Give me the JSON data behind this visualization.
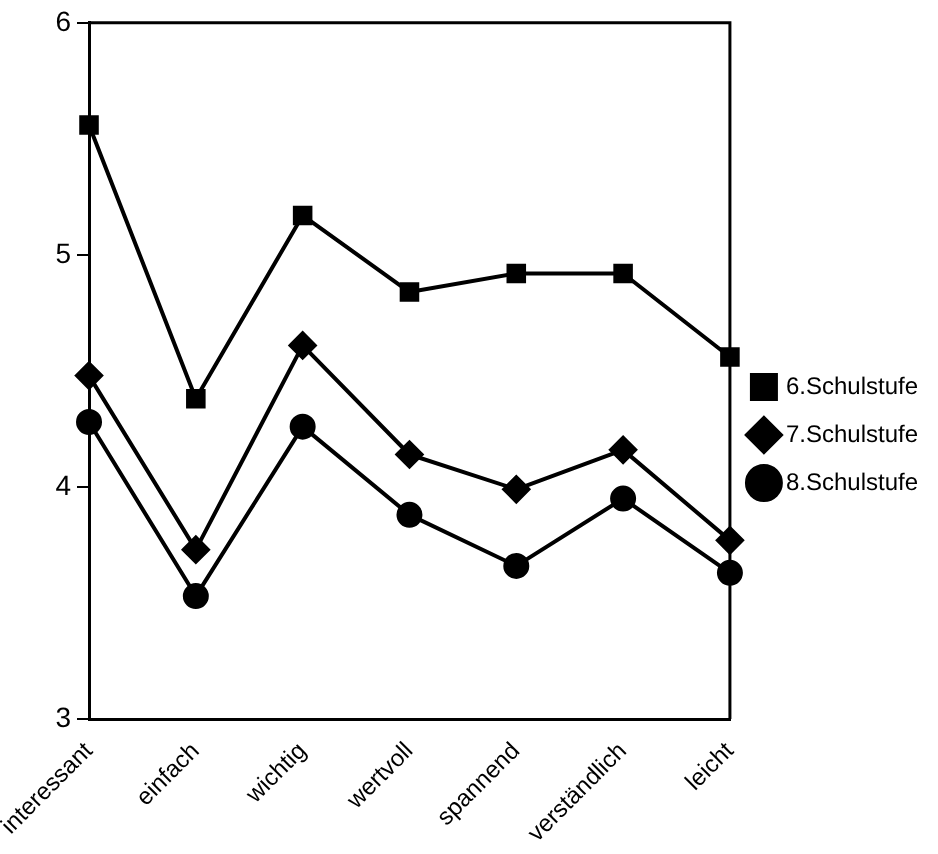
{
  "chart_data": {
    "type": "line",
    "categories": [
      "interessant",
      "einfach",
      "wichtig",
      "wertvoll",
      "spannend",
      "verständlich",
      "leicht"
    ],
    "series": [
      {
        "name": "6.Schulstufe",
        "color": "#000000",
        "marker": "square",
        "values": [
          5.56,
          4.38,
          5.17,
          4.84,
          4.92,
          4.92,
          4.56
        ]
      },
      {
        "name": "7.Schulstufe",
        "color": "#000000",
        "marker": "diamond",
        "values": [
          4.48,
          3.73,
          4.61,
          4.14,
          3.99,
          4.16,
          3.77
        ]
      },
      {
        "name": "8.Schulstufe",
        "color": "#000000",
        "marker": "circle",
        "values": [
          4.28,
          3.53,
          4.26,
          3.88,
          3.66,
          3.95,
          3.63
        ]
      }
    ],
    "ylim": [
      3,
      6
    ],
    "yticks": [
      3,
      4,
      5,
      6
    ],
    "grid": false,
    "legend": "right",
    "line_style": "solid"
  }
}
